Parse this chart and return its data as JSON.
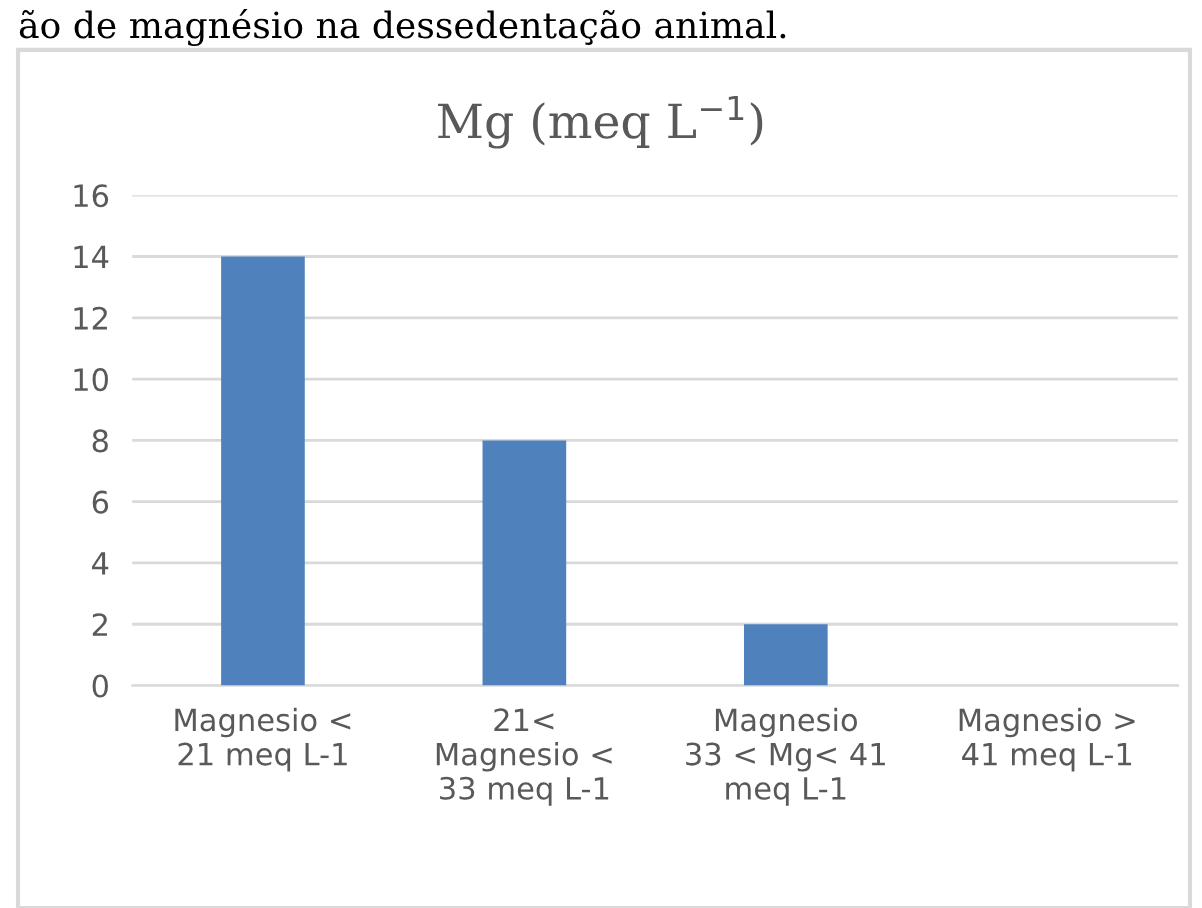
{
  "chart_data": {
    "type": "bar",
    "title": "Mg (meq L$^{−1}$)",
    "categories": [
      "Magnesio <\n21 meq L-1",
      "21<\nMagnesio <\n33 meq L-1",
      "Magnesio\n33 < Mg< 41\nmeq L-1",
      "Magnesio >\n41 meq L-1"
    ],
    "values": [
      14,
      8,
      2,
      0
    ],
    "color": "#4f81bd",
    "ylim": [
      0,
      16
    ],
    "yticks": [
      0,
      2,
      4,
      6,
      8,
      10,
      12,
      14,
      16
    ],
    "grid": "y",
    "legend": false,
    "annotations": [
      "ão de magnésio na dessedentação animal."
    ]
  }
}
